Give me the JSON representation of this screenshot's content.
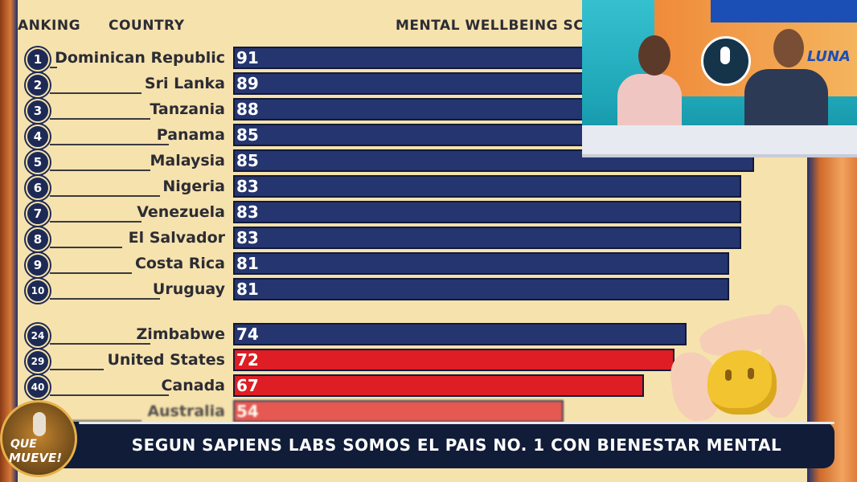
{
  "headers": {
    "ranking": "ANKING",
    "country": "COUNTRY",
    "score": "MENTAL WELLBEING SCORE"
  },
  "chart_data": {
    "type": "bar",
    "orientation": "horizontal",
    "title": "",
    "xlabel": "MENTAL WELLBEING SCORE",
    "ylabel": "COUNTRY",
    "rows": [
      {
        "rank": "1",
        "country": "Dominican Republic",
        "value": 91,
        "color": "#25356f"
      },
      {
        "rank": "2",
        "country": "Sri Lanka",
        "value": 89,
        "color": "#25356f"
      },
      {
        "rank": "3",
        "country": "Tanzania",
        "value": 88,
        "color": "#25356f"
      },
      {
        "rank": "4",
        "country": "Panama",
        "value": 85,
        "color": "#25356f"
      },
      {
        "rank": "5",
        "country": "Malaysia",
        "value": 85,
        "color": "#25356f"
      },
      {
        "rank": "6",
        "country": "Nigeria",
        "value": 83,
        "color": "#25356f"
      },
      {
        "rank": "7",
        "country": "Venezuela",
        "value": 83,
        "color": "#25356f"
      },
      {
        "rank": "8",
        "country": "El Salvador",
        "value": 83,
        "color": "#25356f"
      },
      {
        "rank": "9",
        "country": "Costa Rica",
        "value": 81,
        "color": "#25356f"
      },
      {
        "rank": "10",
        "country": "Uruguay",
        "value": 81,
        "color": "#25356f"
      },
      {
        "rank": "24",
        "country": "Zimbabwe",
        "value": 74,
        "color": "#25356f"
      },
      {
        "rank": "29",
        "country": "United States",
        "value": 72,
        "color": "#de1d24"
      },
      {
        "rank": "40",
        "country": "Canada",
        "value": 67,
        "color": "#de1d24"
      },
      {
        "rank": "",
        "country": "Australia",
        "value": 54,
        "color": "#e2373c"
      }
    ]
  },
  "ticker": {
    "text": "SEGUN SAPIENS LABS SOMOS EL PAIS NO. 1 CON BIENESTAR MENTAL"
  },
  "show_logo": {
    "line1": "QUE",
    "line2": "MUEVE!"
  },
  "inset": {
    "channel_logo": "LUNA"
  },
  "colors": {
    "board": "#f6e2ad",
    "bar_blue": "#25356f",
    "bar_red": "#de1d24",
    "ticker": "#101c38"
  }
}
